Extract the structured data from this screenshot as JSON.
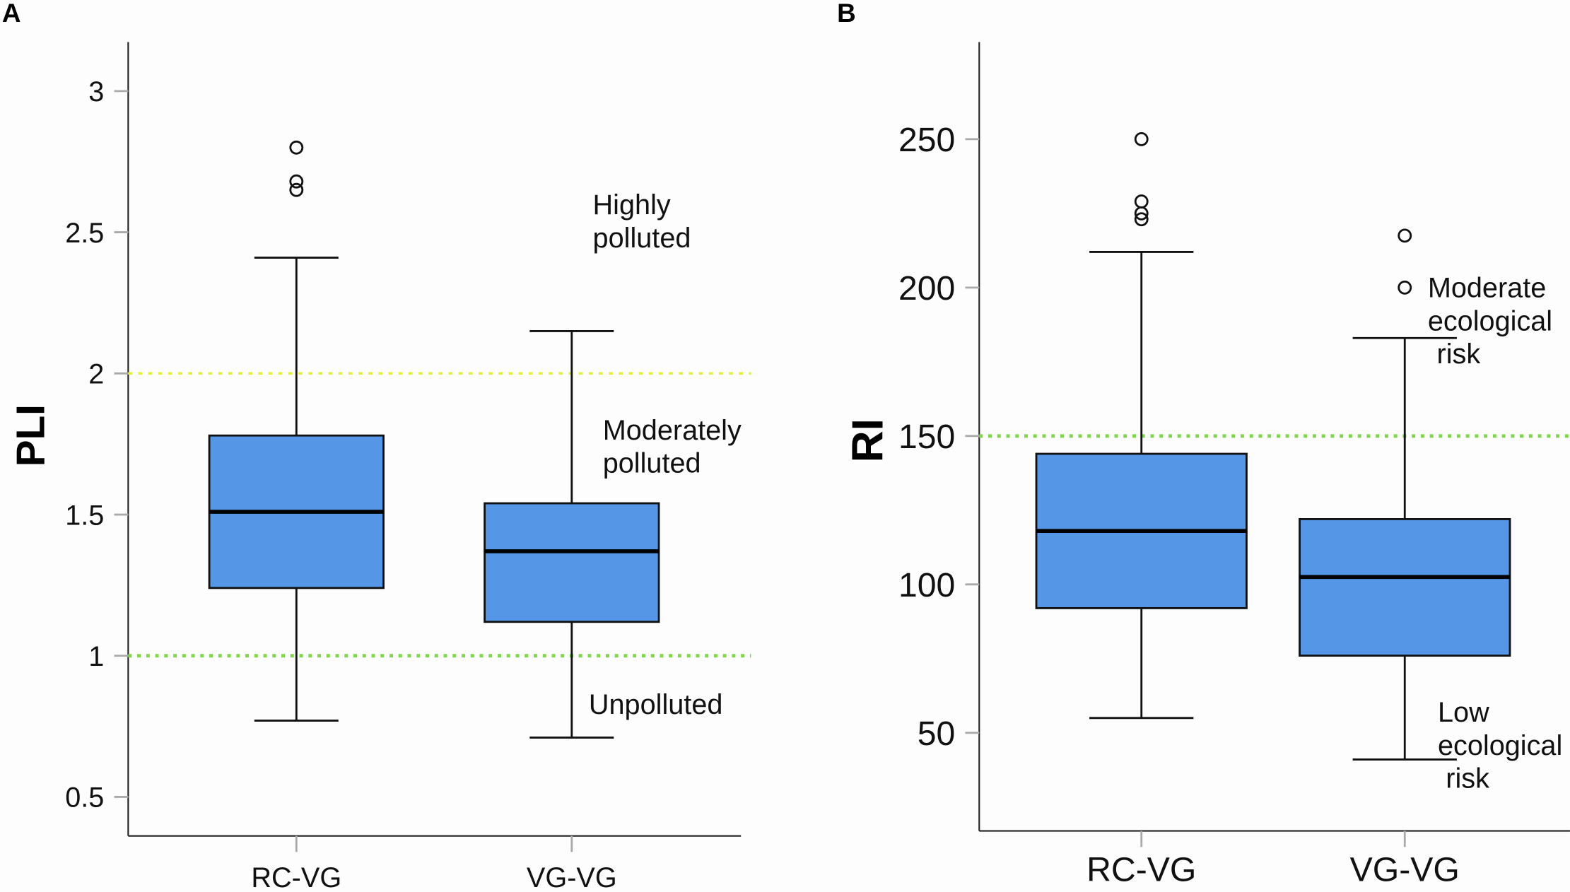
{
  "colors": {
    "box": "#5596e6",
    "line_yellow": "#e3f03c",
    "line_green": "#7ed84a",
    "ink": "#111111",
    "tick": "#aaaaaa"
  },
  "chart_data": [
    {
      "type": "box",
      "panel_label": "A",
      "ylabel": "PLI",
      "xlabel": "",
      "categories": [
        "RC-VG",
        "VG-VG"
      ],
      "ylim": [
        0.36,
        3.17
      ],
      "yticks": [
        0.5,
        1,
        1.5,
        2,
        2.5,
        3
      ],
      "ytick_labels": [
        "0.5",
        "1",
        "1.5",
        "2",
        "2.5",
        "3"
      ],
      "series": [
        {
          "name": "RC-VG",
          "whisker_low": 0.77,
          "q1": 1.24,
          "median": 1.51,
          "q3": 1.78,
          "whisker_high": 2.41,
          "outliers": [
            2.8,
            2.68,
            2.65
          ]
        },
        {
          "name": "VG-VG",
          "whisker_low": 0.71,
          "q1": 1.12,
          "median": 1.37,
          "q3": 1.54,
          "whisker_high": 2.15,
          "outliers": []
        }
      ],
      "reference_lines": [
        {
          "value": 2,
          "color": "yellow"
        },
        {
          "value": 1,
          "color": "green"
        }
      ],
      "annotations": [
        {
          "lines": [
            "Highly",
            "polluted"
          ]
        },
        {
          "lines": [
            "Moderately",
            "polluted"
          ]
        },
        {
          "lines": [
            "Unpolluted"
          ]
        }
      ]
    },
    {
      "type": "box",
      "panel_label": "B",
      "ylabel": "RI",
      "xlabel": "",
      "categories": [
        "RC-VG",
        "VG-VG"
      ],
      "ylim": [
        17,
        283
      ],
      "yticks": [
        50,
        100,
        150,
        200,
        250
      ],
      "ytick_labels": [
        "50",
        "100",
        "150",
        "200",
        "250"
      ],
      "series": [
        {
          "name": "RC-VG",
          "whisker_low": 55,
          "q1": 92,
          "median": 118,
          "q3": 144,
          "whisker_high": 212,
          "outliers": [
            250,
            229,
            225,
            223
          ]
        },
        {
          "name": "VG-VG",
          "whisker_low": 41,
          "q1": 76,
          "median": 102.5,
          "q3": 122,
          "whisker_high": 183,
          "outliers": [
            217.5,
            200
          ]
        }
      ],
      "reference_lines": [
        {
          "value": 150,
          "color": "green"
        }
      ],
      "annotations": [
        {
          "lines": [
            "Moderate",
            "ecological",
            "risk"
          ]
        },
        {
          "lines": [
            "Low",
            "ecological",
            "risk"
          ]
        }
      ]
    }
  ]
}
